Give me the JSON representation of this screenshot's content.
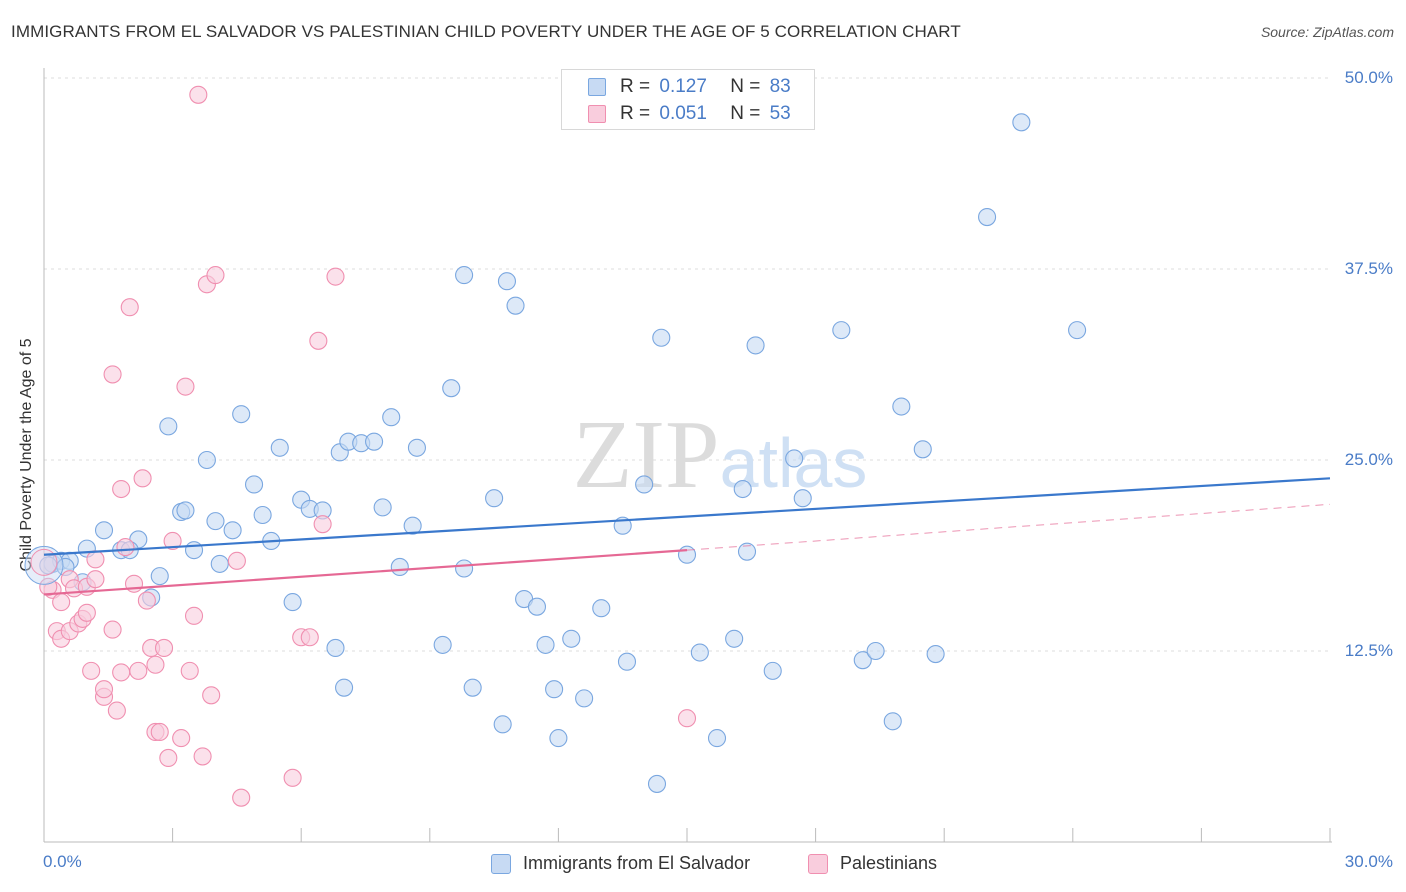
{
  "chart_data": {
    "type": "scatter",
    "title": "IMMIGRANTS FROM EL SALVADOR VS PALESTINIAN CHILD POVERTY UNDER THE AGE OF 5 CORRELATION CHART",
    "source": "Source: ZipAtlas.com",
    "watermark": "ZIPatlas",
    "xlabel": "",
    "ylabel": "Child Poverty Under the Age of 5",
    "xlim": [
      0,
      30
    ],
    "ylim": [
      0,
      50
    ],
    "x_tick_labels": [
      "0.0%",
      "30.0%"
    ],
    "y_ticks": [
      12.5,
      25.0,
      37.5,
      50.0
    ],
    "y_tick_labels": [
      "12.5%",
      "25.0%",
      "37.5%",
      "50.0%"
    ],
    "grid": "horizontal dashed",
    "legend_stats": [
      {
        "r_label": "R =",
        "r_value": "0.127",
        "n_label": "N =",
        "n_value": "83"
      },
      {
        "r_label": "R =",
        "r_value": "0.051",
        "n_label": "N =",
        "n_value": "53"
      }
    ],
    "series": [
      {
        "name": "Immigrants from El Salvador",
        "color": "#7aa7e0",
        "fill": "#c7daf3",
        "line_color": "#3a78cc",
        "trend": {
          "x0": 0,
          "y0": 18.8,
          "x1": 30,
          "y1": 23.8,
          "dashed_from": null
        },
        "points": [
          [
            0.2,
            18.2
          ],
          [
            0.4,
            18.4
          ],
          [
            0.6,
            18.4
          ],
          [
            0.9,
            17.0
          ],
          [
            1.0,
            19.2
          ],
          [
            1.4,
            20.4
          ],
          [
            1.8,
            19.1
          ],
          [
            2.2,
            19.8
          ],
          [
            2.0,
            19.1
          ],
          [
            2.5,
            16.0
          ],
          [
            2.7,
            17.4
          ],
          [
            2.9,
            27.2
          ],
          [
            3.2,
            21.6
          ],
          [
            3.3,
            21.7
          ],
          [
            3.5,
            19.1
          ],
          [
            3.8,
            25.0
          ],
          [
            4.0,
            21.0
          ],
          [
            4.1,
            18.2
          ],
          [
            4.4,
            20.4
          ],
          [
            4.6,
            28.0
          ],
          [
            4.9,
            23.4
          ],
          [
            5.1,
            21.4
          ],
          [
            5.3,
            19.7
          ],
          [
            5.5,
            25.8
          ],
          [
            5.8,
            15.7
          ],
          [
            6.0,
            22.4
          ],
          [
            6.2,
            21.8
          ],
          [
            6.5,
            21.7
          ],
          [
            6.8,
            12.7
          ],
          [
            6.9,
            25.5
          ],
          [
            7.1,
            26.2
          ],
          [
            7.4,
            26.1
          ],
          [
            7.7,
            26.2
          ],
          [
            7.0,
            10.1
          ],
          [
            7.9,
            21.9
          ],
          [
            8.1,
            27.8
          ],
          [
            8.3,
            18.0
          ],
          [
            8.6,
            20.7
          ],
          [
            8.7,
            25.8
          ],
          [
            9.3,
            12.9
          ],
          [
            9.5,
            29.7
          ],
          [
            9.8,
            17.9
          ],
          [
            9.8,
            37.1
          ],
          [
            10.0,
            10.1
          ],
          [
            10.5,
            22.5
          ],
          [
            10.7,
            7.7
          ],
          [
            10.8,
            36.7
          ],
          [
            11.0,
            35.1
          ],
          [
            11.2,
            15.9
          ],
          [
            11.5,
            15.4
          ],
          [
            11.7,
            12.9
          ],
          [
            11.9,
            10.0
          ],
          [
            12.0,
            6.8
          ],
          [
            12.3,
            13.3
          ],
          [
            12.6,
            9.4
          ],
          [
            13.0,
            15.3
          ],
          [
            13.5,
            20.7
          ],
          [
            13.6,
            11.8
          ],
          [
            14.0,
            23.4
          ],
          [
            14.3,
            3.8
          ],
          [
            14.4,
            33.0
          ],
          [
            15.0,
            18.8
          ],
          [
            15.3,
            12.4
          ],
          [
            15.7,
            6.8
          ],
          [
            16.1,
            13.3
          ],
          [
            16.3,
            23.1
          ],
          [
            16.4,
            19.0
          ],
          [
            16.6,
            32.5
          ],
          [
            17.0,
            11.2
          ],
          [
            17.5,
            25.1
          ],
          [
            17.7,
            22.5
          ],
          [
            18.6,
            33.5
          ],
          [
            19.1,
            11.9
          ],
          [
            19.4,
            12.5
          ],
          [
            19.8,
            7.9
          ],
          [
            20.0,
            28.5
          ],
          [
            20.5,
            25.7
          ],
          [
            20.8,
            12.3
          ],
          [
            22.0,
            40.9
          ],
          [
            22.8,
            47.1
          ],
          [
            24.1,
            33.5
          ],
          [
            0.1,
            18.1
          ],
          [
            0.5,
            18.0
          ]
        ]
      },
      {
        "name": "Palestinians",
        "color": "#f08fb0",
        "fill": "#f9cddd",
        "line_color": "#e56894",
        "trend": {
          "x0": 0,
          "y0": 16.2,
          "x1": 15,
          "y1": 19.1,
          "dashed_from": 15,
          "x2": 30,
          "y2": 22.1
        },
        "points": [
          [
            0.2,
            16.5
          ],
          [
            0.3,
            13.8
          ],
          [
            0.4,
            13.3
          ],
          [
            0.4,
            15.7
          ],
          [
            0.6,
            17.2
          ],
          [
            0.6,
            13.8
          ],
          [
            0.7,
            16.6
          ],
          [
            0.8,
            14.3
          ],
          [
            0.9,
            14.6
          ],
          [
            1.0,
            16.7
          ],
          [
            1.0,
            15.0
          ],
          [
            1.1,
            11.2
          ],
          [
            1.2,
            17.2
          ],
          [
            1.2,
            18.5
          ],
          [
            1.4,
            9.5
          ],
          [
            1.4,
            10.0
          ],
          [
            1.6,
            30.6
          ],
          [
            1.6,
            13.9
          ],
          [
            1.7,
            8.6
          ],
          [
            1.8,
            11.1
          ],
          [
            1.8,
            23.1
          ],
          [
            1.9,
            19.3
          ],
          [
            2.0,
            35.0
          ],
          [
            2.1,
            16.9
          ],
          [
            2.2,
            11.2
          ],
          [
            2.3,
            23.8
          ],
          [
            2.4,
            15.8
          ],
          [
            2.5,
            12.7
          ],
          [
            2.6,
            11.6
          ],
          [
            2.6,
            7.2
          ],
          [
            2.7,
            7.2
          ],
          [
            2.8,
            12.7
          ],
          [
            2.9,
            5.5
          ],
          [
            3.0,
            19.7
          ],
          [
            3.2,
            6.8
          ],
          [
            3.3,
            29.8
          ],
          [
            3.4,
            11.2
          ],
          [
            3.5,
            14.8
          ],
          [
            3.6,
            48.9
          ],
          [
            3.7,
            5.6
          ],
          [
            3.8,
            36.5
          ],
          [
            3.9,
            9.6
          ],
          [
            4.0,
            37.1
          ],
          [
            4.5,
            18.4
          ],
          [
            4.6,
            2.9
          ],
          [
            5.8,
            4.2
          ],
          [
            6.0,
            13.4
          ],
          [
            6.2,
            13.4
          ],
          [
            6.4,
            32.8
          ],
          [
            6.5,
            20.8
          ],
          [
            6.8,
            37.0
          ],
          [
            15.0,
            8.1
          ],
          [
            0.1,
            16.7
          ]
        ]
      }
    ]
  }
}
